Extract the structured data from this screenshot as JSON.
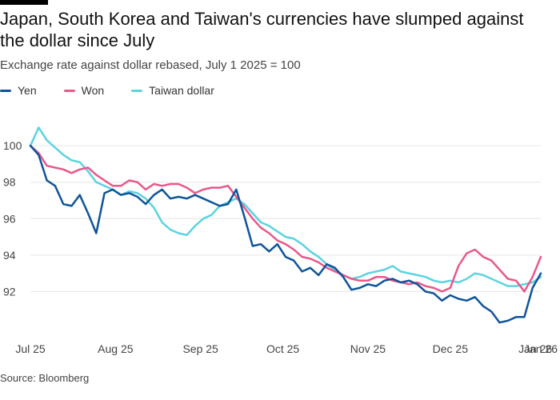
{
  "chart_data": {
    "type": "line",
    "title": "Japan, South Korea and Taiwan's currencies have slumped against the dollar since July",
    "subtitle": "Exchange rate against dollar rebased, July 1 2025 = 100",
    "source": "Source: Bloomberg",
    "xlabel": "",
    "ylabel": "",
    "ylim": [
      90,
      101.5
    ],
    "xlim": [
      0,
      186
    ],
    "y_ticks": [
      92,
      94,
      96,
      98,
      100
    ],
    "y_tick_labels": [
      "92",
      "94",
      "96",
      "98",
      "100"
    ],
    "x_ticks": [
      0,
      31,
      62,
      92,
      123,
      153,
      184
    ],
    "x_tick_labels": [
      "Jul 25",
      "Aug 25",
      "Sep 25",
      "Oct 25",
      "Nov 25",
      "Dec 25",
      "Jan 26"
    ],
    "x_tick_labels_extra": [
      {
        "x": 184,
        "label": "Jan 26"
      }
    ],
    "grid": true,
    "legend": "top-left",
    "x_unit": "days since July 1 2025",
    "series": [
      {
        "name": "Yen",
        "color": "#0f5499",
        "x": [
          0,
          3,
          6,
          9,
          12,
          15,
          18,
          21,
          24,
          27,
          30,
          33,
          36,
          39,
          42,
          45,
          48,
          51,
          54,
          57,
          60,
          63,
          66,
          69,
          72,
          75,
          78,
          81,
          84,
          87,
          90,
          93,
          96,
          99,
          102,
          105,
          108,
          111,
          114,
          117,
          120,
          123,
          126,
          129,
          132,
          135,
          138,
          141,
          144,
          147,
          150,
          153,
          156,
          159,
          162,
          165,
          168,
          171,
          174,
          177,
          180,
          183,
          186
        ],
        "values": [
          100.0,
          99.5,
          98.1,
          97.8,
          96.8,
          96.7,
          97.3,
          96.3,
          95.2,
          97.4,
          97.6,
          97.3,
          97.4,
          97.2,
          96.8,
          97.3,
          97.6,
          97.1,
          97.2,
          97.1,
          97.3,
          97.1,
          96.9,
          96.7,
          96.8,
          97.6,
          96.1,
          94.5,
          94.6,
          94.2,
          94.6,
          93.9,
          93.7,
          93.1,
          93.3,
          92.9,
          93.5,
          93.3,
          92.8,
          92.1,
          92.2,
          92.4,
          92.3,
          92.6,
          92.7,
          92.5,
          92.6,
          92.4,
          92.0,
          91.9,
          91.5,
          91.8,
          91.6,
          91.5,
          91.7,
          91.2,
          90.9,
          90.3,
          90.4,
          90.6,
          90.6,
          92.2,
          93.0
        ]
      },
      {
        "name": "Won",
        "color": "#e8588b",
        "x": [
          0,
          3,
          6,
          9,
          12,
          15,
          18,
          21,
          24,
          27,
          30,
          33,
          36,
          39,
          42,
          45,
          48,
          51,
          54,
          57,
          60,
          63,
          66,
          69,
          72,
          75,
          78,
          81,
          84,
          87,
          90,
          93,
          96,
          99,
          102,
          105,
          108,
          111,
          114,
          117,
          120,
          123,
          126,
          129,
          132,
          135,
          138,
          141,
          144,
          147,
          150,
          153,
          156,
          159,
          162,
          165,
          168,
          171,
          174,
          177,
          180,
          183,
          186
        ],
        "values": [
          100.0,
          99.6,
          98.9,
          98.8,
          98.7,
          98.5,
          98.7,
          98.8,
          98.4,
          98.1,
          97.8,
          97.8,
          98.1,
          98.0,
          97.6,
          97.9,
          97.8,
          97.9,
          97.9,
          97.7,
          97.4,
          97.6,
          97.7,
          97.7,
          97.8,
          97.2,
          96.6,
          96.0,
          95.5,
          95.2,
          94.8,
          94.6,
          94.3,
          93.9,
          93.8,
          93.6,
          93.3,
          93.1,
          92.9,
          92.7,
          92.6,
          92.6,
          92.8,
          92.8,
          92.6,
          92.5,
          92.4,
          92.5,
          92.3,
          92.2,
          92.0,
          92.2,
          93.4,
          94.1,
          94.3,
          93.9,
          93.7,
          93.2,
          92.7,
          92.6,
          92.0,
          92.8,
          93.9
        ]
      },
      {
        "name": "Taiwan dollar",
        "color": "#5bd3e0",
        "x": [
          0,
          3,
          6,
          9,
          12,
          15,
          18,
          21,
          24,
          27,
          30,
          33,
          36,
          39,
          42,
          45,
          48,
          51,
          54,
          57,
          60,
          63,
          66,
          69,
          72,
          75,
          78,
          81,
          84,
          87,
          90,
          93,
          96,
          99,
          102,
          105,
          108,
          111,
          114,
          117,
          120,
          123,
          126,
          129,
          132,
          135,
          138,
          141,
          144,
          147,
          150,
          153,
          156,
          159,
          162,
          165,
          168,
          171,
          174,
          177,
          180,
          183,
          186
        ],
        "values": [
          100.0,
          101.0,
          100.3,
          99.9,
          99.5,
          99.2,
          99.1,
          98.6,
          98.0,
          97.8,
          97.6,
          97.3,
          97.5,
          97.4,
          97.1,
          96.6,
          95.8,
          95.4,
          95.2,
          95.1,
          95.6,
          96.0,
          96.2,
          96.7,
          96.9,
          97.1,
          96.8,
          96.3,
          95.8,
          95.6,
          95.3,
          95.0,
          94.9,
          94.6,
          94.2,
          93.9,
          93.5,
          93.2,
          92.9,
          92.7,
          92.8,
          93.0,
          93.1,
          93.2,
          93.4,
          93.1,
          93.0,
          92.9,
          92.8,
          92.6,
          92.5,
          92.6,
          92.5,
          92.7,
          93.0,
          92.9,
          92.7,
          92.5,
          92.3,
          92.3,
          92.4,
          92.5,
          92.8
        ]
      }
    ]
  }
}
